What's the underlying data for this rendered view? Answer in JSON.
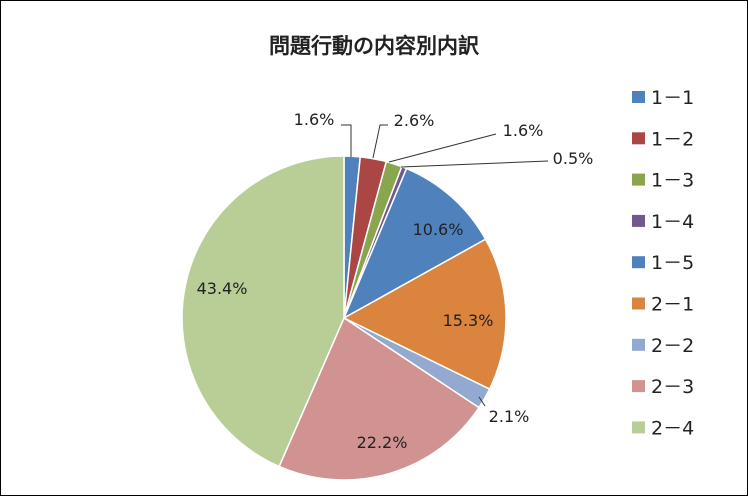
{
  "chart_data": {
    "type": "pie",
    "title": "問題行動の内容別内訳",
    "categories": [
      "1－1",
      "1－2",
      "1－3",
      "1－4",
      "1－5",
      "2－1",
      "2－2",
      "2－3",
      "2－4"
    ],
    "values": [
      1.6,
      2.6,
      1.6,
      0.5,
      10.6,
      15.3,
      2.1,
      22.2,
      43.4
    ],
    "data_labels": [
      "1.6%",
      "2.6%",
      "1.6%",
      "0.5%",
      "10.6%",
      "15.3%",
      "2.1%",
      "22.2%",
      "43.4%"
    ],
    "colors": [
      "#4F81BD",
      "#AA4643",
      "#89A54E",
      "#71588F",
      "#4F81BD",
      "#DB843D",
      "#93A9CF",
      "#D19392",
      "#B9CD96"
    ],
    "start": "top, clockwise",
    "legend_position": "right"
  }
}
